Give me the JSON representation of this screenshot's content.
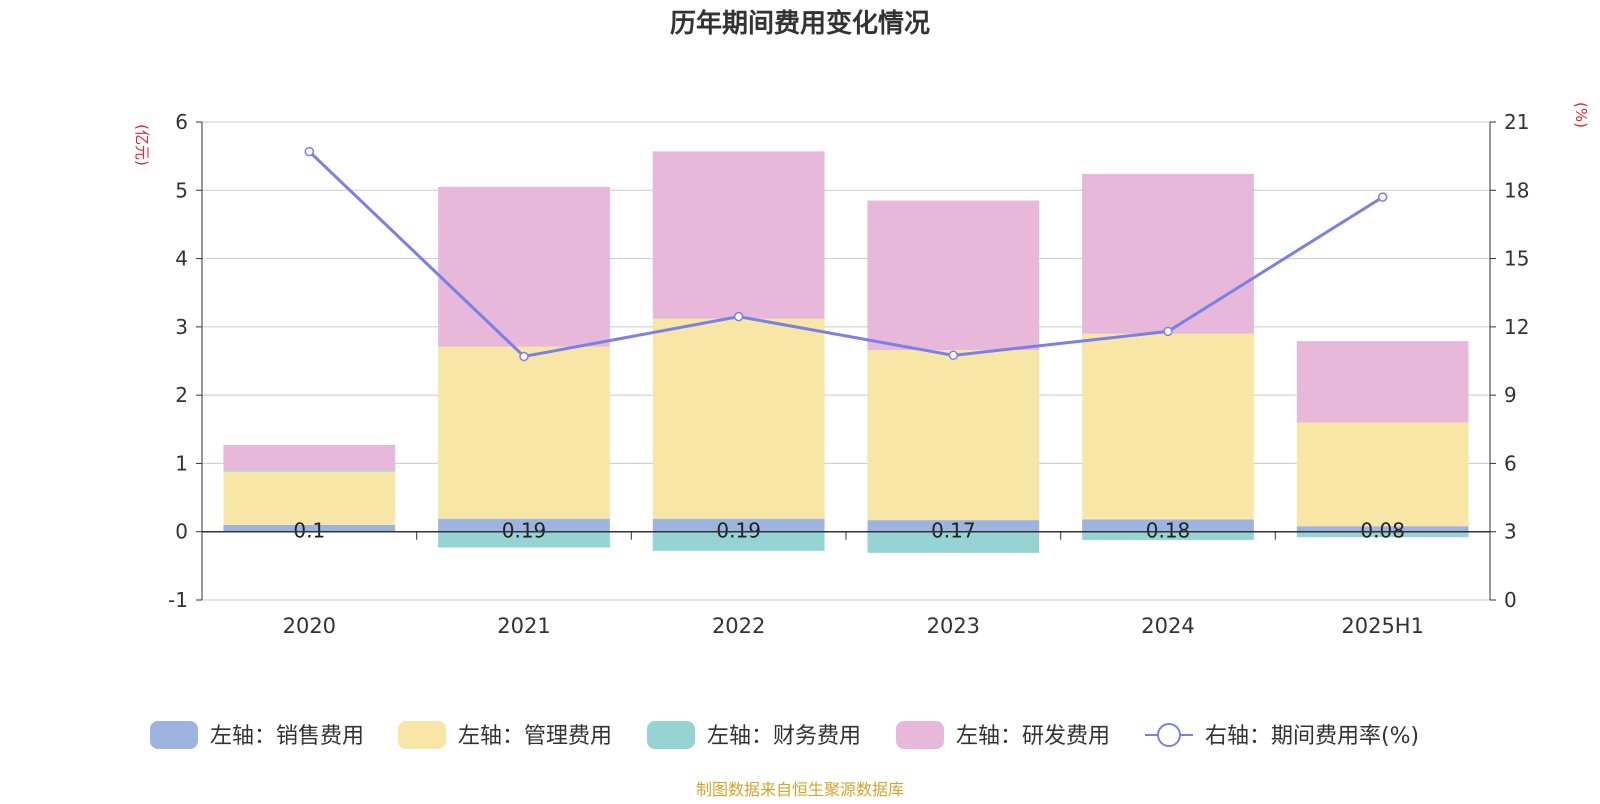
{
  "chart_data": {
    "type": "bar",
    "stacked": true,
    "title": "历年期间费用变化情况",
    "source": "制图数据来自恒生聚源数据库",
    "categories": [
      "2020",
      "2021",
      "2022",
      "2023",
      "2024",
      "2025H1"
    ],
    "left_axis": {
      "unit": "(亿元)",
      "ylim": [
        -1,
        6
      ],
      "ticks": [
        "-1",
        "0",
        "1",
        "2",
        "3",
        "4",
        "5",
        "6"
      ]
    },
    "right_axis": {
      "unit": "(%)",
      "ylim": [
        0,
        21
      ],
      "ticks": [
        "0",
        "3",
        "6",
        "9",
        "12",
        "15",
        "18",
        "21"
      ]
    },
    "grid": true,
    "legend_position": "bottom",
    "series": [
      {
        "name": "左轴：销售费用",
        "color": "#9DB4E0",
        "axis": "left",
        "values": [
          0.1,
          0.19,
          0.19,
          0.17,
          0.18,
          0.08
        ],
        "labels": [
          "0.1",
          "0.19",
          "0.19",
          "0.17",
          "0.18",
          "0.08"
        ]
      },
      {
        "name": "左轴：管理费用",
        "color": "#F7E6A6",
        "axis": "left",
        "values": [
          0.78,
          2.52,
          2.93,
          2.49,
          2.72,
          1.52
        ]
      },
      {
        "name": "左轴：财务费用",
        "color": "#96D3D3",
        "axis": "left",
        "values": [
          0.02,
          -0.23,
          -0.28,
          -0.31,
          -0.12,
          -0.08
        ]
      },
      {
        "name": "左轴：研发费用",
        "color": "#E7B8D9",
        "axis": "left",
        "values": [
          0.37,
          2.34,
          2.45,
          2.19,
          2.34,
          1.19
        ]
      },
      {
        "name": "右轴：期间费用率(%)",
        "color": "#7B7FE8",
        "axis": "right",
        "type": "line",
        "values": [
          19.7,
          10.7,
          12.45,
          10.75,
          11.8,
          17.7
        ]
      }
    ]
  }
}
